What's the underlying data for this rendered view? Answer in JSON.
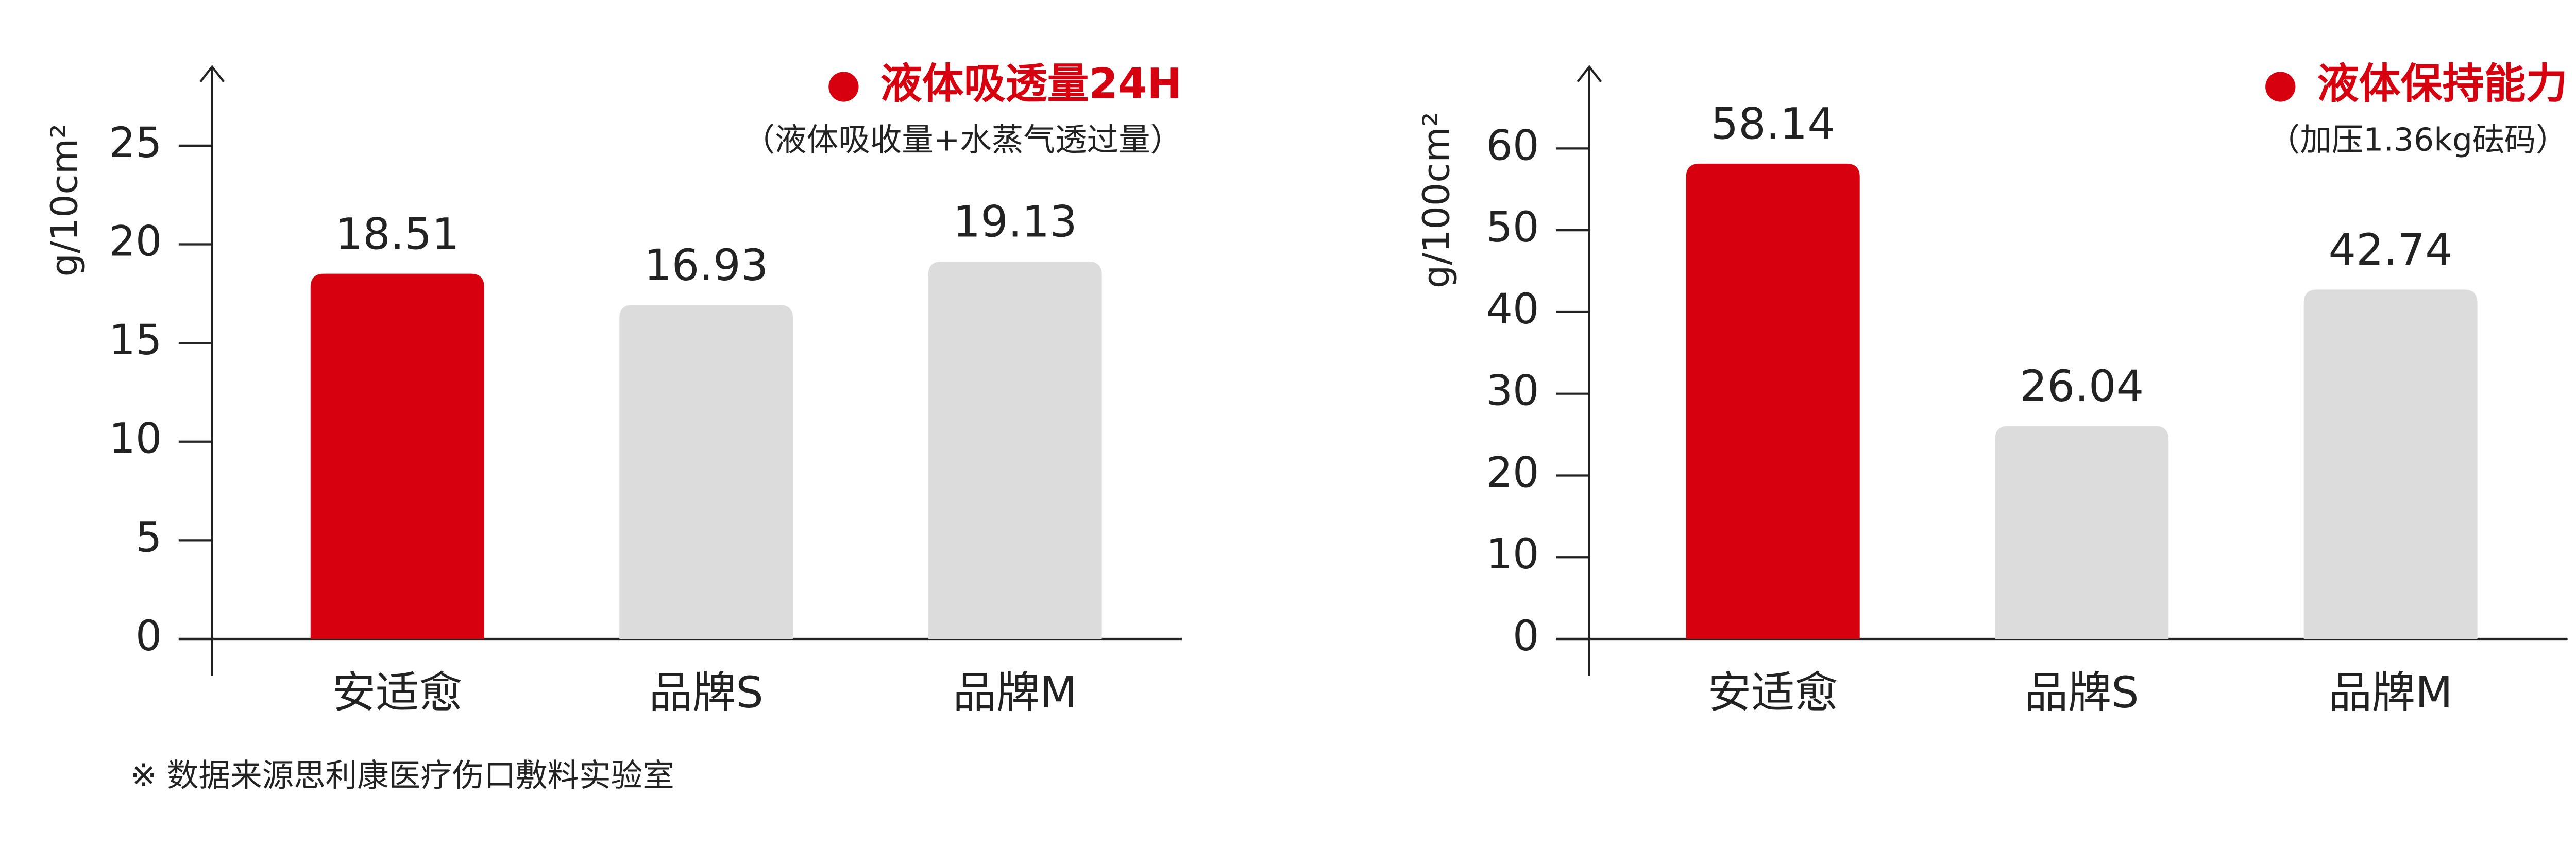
{
  "chart_data": [
    {
      "type": "bar",
      "title": "液体吸透量24H",
      "subtitle": "（液体吸收量+水蒸气透过量）",
      "y_label": "g/10cm²",
      "categories": [
        "安适愈",
        "品牌S",
        "品牌M"
      ],
      "values": [
        18.51,
        16.93,
        19.13
      ],
      "colors": [
        "#d7000f",
        "#dcdcdc",
        "#dcdcdc"
      ],
      "ylim": [
        0,
        29
      ],
      "yticks": [
        0,
        5,
        10,
        15,
        20,
        25
      ]
    },
    {
      "type": "bar",
      "title": "液体保持能力",
      "subtitle": "（加压1.36kg砝码）",
      "y_label": "g/100cm²",
      "categories": [
        "安适愈",
        "品牌S",
        "品牌M"
      ],
      "values": [
        58.14,
        26.04,
        42.74
      ],
      "colors": [
        "#d7000f",
        "#dcdcdc",
        "#dcdcdc"
      ],
      "ylim": [
        0,
        70
      ],
      "yticks": [
        0,
        10,
        20,
        30,
        40,
        50,
        60
      ]
    }
  ],
  "footnote": "※ 数据来源思利康医疗伤口敷料实验室"
}
